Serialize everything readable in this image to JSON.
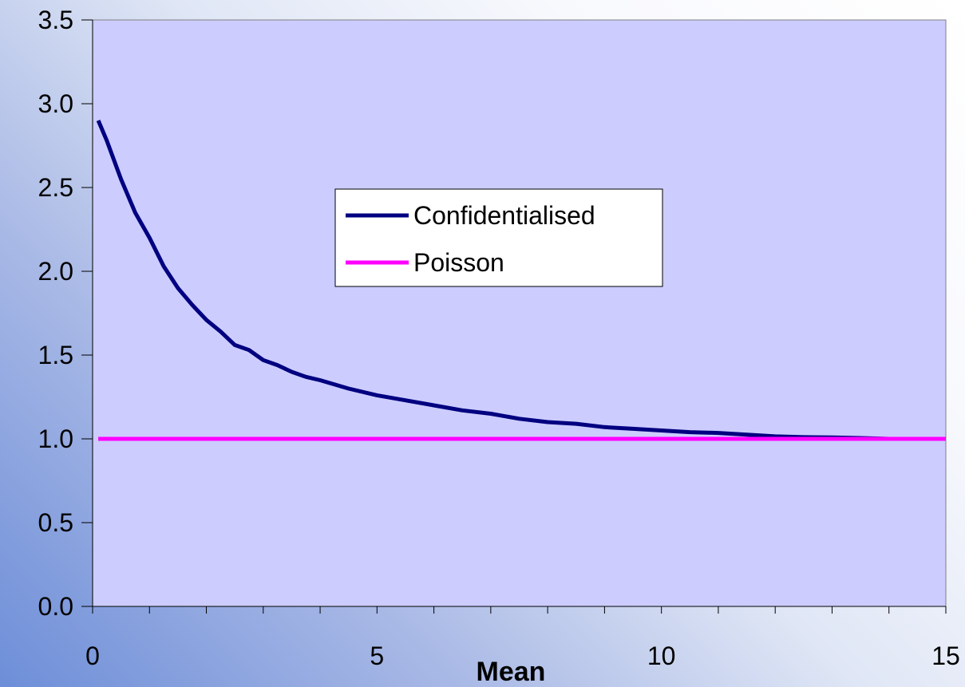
{
  "chart_data": {
    "type": "line",
    "title": "",
    "xlabel": "Mean",
    "ylabel": "",
    "xlim": [
      0,
      15
    ],
    "ylim": [
      0,
      3.5
    ],
    "x_ticks": [
      0,
      5,
      10,
      15
    ],
    "x_tick_labels": [
      "0",
      "5",
      "10",
      "15"
    ],
    "y_ticks": [
      0,
      0.5,
      1.0,
      1.5,
      2.0,
      2.5,
      3.0,
      3.5
    ],
    "y_tick_labels": [
      "0.0",
      "0.5",
      "1.0",
      "1.5",
      "2.0",
      "2.5",
      "3.0",
      "3.5"
    ],
    "grid": false,
    "legend_position": "center",
    "plot_background": "#ccccff",
    "series": [
      {
        "name": "Confidentialised",
        "color": "#000080",
        "x": [
          0.1,
          0.25,
          0.5,
          0.75,
          1.0,
          1.25,
          1.5,
          1.75,
          2.0,
          2.25,
          2.5,
          2.75,
          3.0,
          3.25,
          3.5,
          3.75,
          4.0,
          4.5,
          5.0,
          5.5,
          6.0,
          6.5,
          7.0,
          7.5,
          8.0,
          8.5,
          9.0,
          9.5,
          10.0,
          10.5,
          11.0,
          11.5,
          12.0,
          12.5,
          13.0,
          13.5,
          14.0,
          14.5,
          15.0
        ],
        "y": [
          2.9,
          2.78,
          2.55,
          2.35,
          2.2,
          2.03,
          1.9,
          1.8,
          1.71,
          1.64,
          1.56,
          1.53,
          1.47,
          1.44,
          1.4,
          1.37,
          1.35,
          1.3,
          1.26,
          1.23,
          1.2,
          1.17,
          1.15,
          1.12,
          1.1,
          1.09,
          1.07,
          1.06,
          1.05,
          1.04,
          1.035,
          1.025,
          1.015,
          1.01,
          1.008,
          1.005,
          1.0,
          1.0,
          1.0
        ]
      },
      {
        "name": "Poisson",
        "color": "#ff00ff",
        "x": [
          0.1,
          15.0
        ],
        "y": [
          1.0,
          1.0
        ]
      }
    ]
  }
}
